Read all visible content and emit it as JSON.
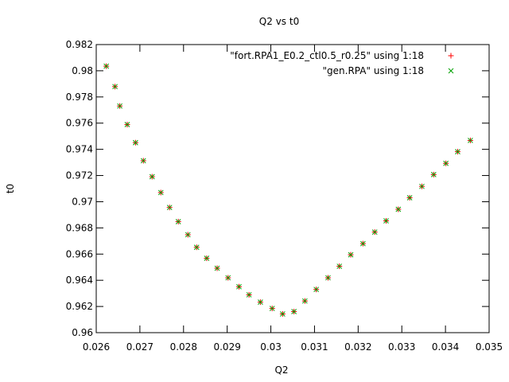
{
  "chart_data": {
    "type": "scatter",
    "title": "Q2 vs t0",
    "xlabel": "Q2",
    "ylabel": "t0",
    "xlim": [
      0.026,
      0.035
    ],
    "ylim": [
      0.96,
      0.982
    ],
    "xticks": [
      "0.026",
      "0.027",
      "0.028",
      "0.029",
      "0.03",
      "0.031",
      "0.032",
      "0.033",
      "0.034",
      "0.035"
    ],
    "yticks": [
      "0.96",
      "0.962",
      "0.964",
      "0.966",
      "0.968",
      "0.97",
      "0.972",
      "0.974",
      "0.976",
      "0.978",
      "0.98",
      "0.982"
    ],
    "grid": false,
    "legend_position": "top-right",
    "series": [
      {
        "name": "\"fort.RPA1_E0.2_ctl0.5_r0.25\" using 1:18",
        "marker": "+",
        "color": "#ff0000",
        "points": [
          [
            0.02623,
            0.98035
          ],
          [
            0.02643,
            0.97879
          ],
          [
            0.02654,
            0.97731
          ],
          [
            0.02671,
            0.97589
          ],
          [
            0.0269,
            0.97451
          ],
          [
            0.02708,
            0.97313
          ],
          [
            0.02728,
            0.97191
          ],
          [
            0.02748,
            0.9707
          ],
          [
            0.02768,
            0.96956
          ],
          [
            0.02788,
            0.96848
          ],
          [
            0.0281,
            0.96748
          ],
          [
            0.0283,
            0.96652
          ],
          [
            0.02853,
            0.96568
          ],
          [
            0.02877,
            0.96492
          ],
          [
            0.02902,
            0.96419
          ],
          [
            0.02927,
            0.96351
          ],
          [
            0.0295,
            0.96289
          ],
          [
            0.02976,
            0.96233
          ],
          [
            0.03003,
            0.96185
          ],
          [
            0.03027,
            0.96143
          ],
          [
            0.03053,
            0.96161
          ],
          [
            0.03078,
            0.96242
          ],
          [
            0.03104,
            0.9633
          ],
          [
            0.03131,
            0.96419
          ],
          [
            0.03157,
            0.96507
          ],
          [
            0.03183,
            0.96595
          ],
          [
            0.03211,
            0.9668
          ],
          [
            0.03238,
            0.96768
          ],
          [
            0.03264,
            0.96854
          ],
          [
            0.03292,
            0.96942
          ],
          [
            0.03318,
            0.9703
          ],
          [
            0.03346,
            0.97117
          ],
          [
            0.03373,
            0.97207
          ],
          [
            0.03401,
            0.97293
          ],
          [
            0.03428,
            0.97382
          ],
          [
            0.03457,
            0.97468
          ]
        ]
      },
      {
        "name": "\"gen.RPA\" using 1:18",
        "marker": "x",
        "color": "#00a000",
        "points": [
          [
            0.02623,
            0.98035
          ],
          [
            0.02643,
            0.97879
          ],
          [
            0.02654,
            0.97731
          ],
          [
            0.02671,
            0.97589
          ],
          [
            0.0269,
            0.97451
          ],
          [
            0.02708,
            0.97313
          ],
          [
            0.02728,
            0.97191
          ],
          [
            0.02748,
            0.9707
          ],
          [
            0.02768,
            0.96956
          ],
          [
            0.02788,
            0.96848
          ],
          [
            0.0281,
            0.96748
          ],
          [
            0.0283,
            0.96652
          ],
          [
            0.02853,
            0.96568
          ],
          [
            0.02877,
            0.96492
          ],
          [
            0.02902,
            0.96419
          ],
          [
            0.02927,
            0.96351
          ],
          [
            0.0295,
            0.96289
          ],
          [
            0.02976,
            0.96233
          ],
          [
            0.03003,
            0.96185
          ],
          [
            0.03027,
            0.96143
          ],
          [
            0.03053,
            0.96161
          ],
          [
            0.03078,
            0.96242
          ],
          [
            0.03104,
            0.9633
          ],
          [
            0.03131,
            0.96419
          ],
          [
            0.03157,
            0.96507
          ],
          [
            0.03183,
            0.96595
          ],
          [
            0.03211,
            0.9668
          ],
          [
            0.03238,
            0.96768
          ],
          [
            0.03264,
            0.96854
          ],
          [
            0.03292,
            0.96942
          ],
          [
            0.03318,
            0.9703
          ],
          [
            0.03346,
            0.97117
          ],
          [
            0.03373,
            0.97207
          ],
          [
            0.03401,
            0.97293
          ],
          [
            0.03428,
            0.97382
          ],
          [
            0.03457,
            0.97468
          ]
        ]
      }
    ]
  }
}
